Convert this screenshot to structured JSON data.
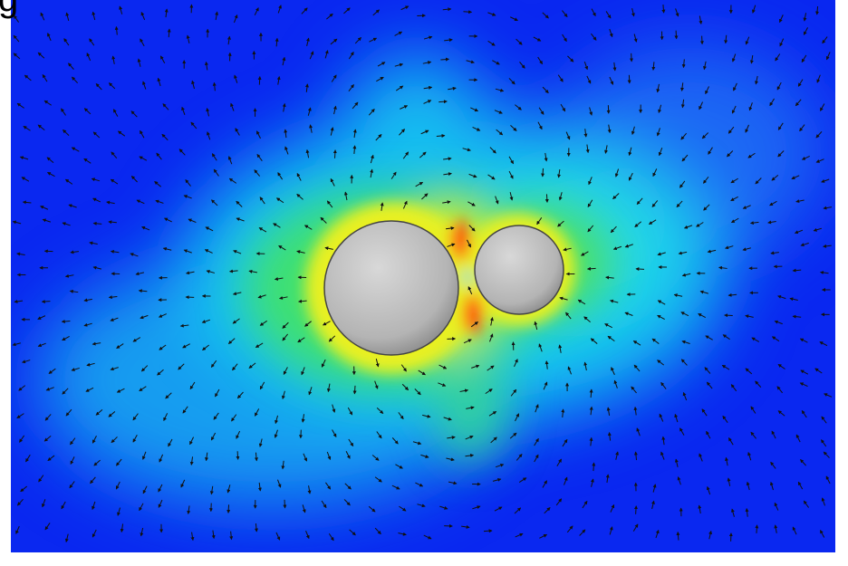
{
  "corner_text": "g"
}
